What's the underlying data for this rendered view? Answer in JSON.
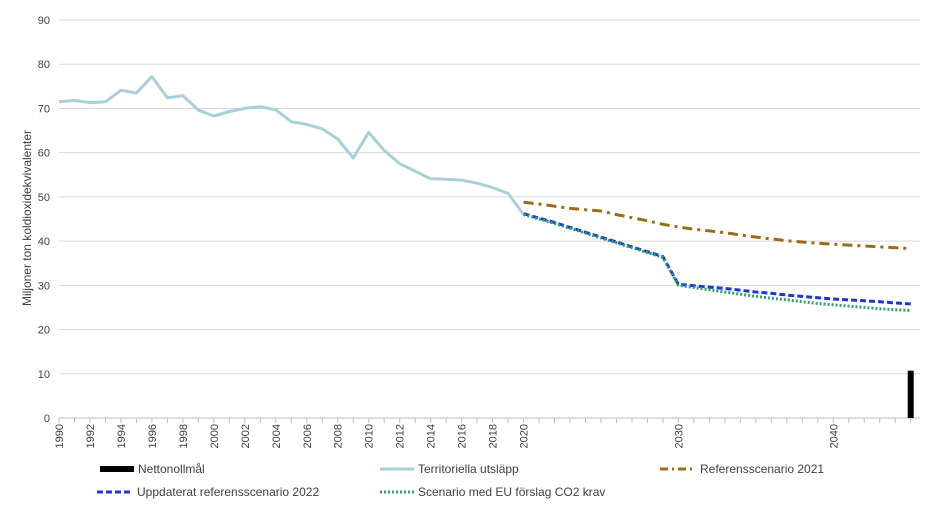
{
  "chart_data": {
    "type": "line",
    "title": "",
    "xlabel": "",
    "ylabel": "Miljoner ton koldioxidekvivalenter",
    "ylim": [
      0,
      90
    ],
    "yticks": [
      0,
      10,
      20,
      30,
      40,
      50,
      60,
      70,
      80,
      90
    ],
    "xticks": [
      "1990",
      "1992",
      "1994",
      "1996",
      "1998",
      "2000",
      "2002",
      "2004",
      "2006",
      "2008",
      "2010",
      "2012",
      "2014",
      "2016",
      "2018",
      "2020",
      "2030",
      "2040"
    ],
    "series": [
      {
        "name": "Territoriella utsläpp",
        "color": "#a9cfd9",
        "style": "solid",
        "x": [
          1990,
          1991,
          1992,
          1993,
          1994,
          1995,
          1996,
          1997,
          1998,
          1999,
          2000,
          2001,
          2002,
          2003,
          2004,
          2005,
          2006,
          2007,
          2008,
          2009,
          2010,
          2011,
          2012,
          2013,
          2014,
          2015,
          2016,
          2017,
          2018,
          2019,
          2020
        ],
        "values": [
          71.5,
          71.8,
          71.3,
          71.5,
          74.1,
          73.5,
          77.2,
          72.4,
          72.9,
          69.6,
          68.3,
          69.3,
          70.0,
          70.4,
          69.7,
          67.0,
          66.4,
          65.4,
          63.1,
          58.8,
          64.6,
          60.5,
          57.5,
          55.8,
          54.1,
          54.0,
          53.8,
          53.1,
          52.1,
          50.8,
          46.0
        ]
      },
      {
        "name": "Referensscenario 2021",
        "color": "#9c6b15",
        "style": "dashdot",
        "x": [
          2020,
          2021,
          2022,
          2023,
          2024,
          2025,
          2026,
          2027,
          2028,
          2029,
          2030,
          2031,
          2032,
          2033,
          2034,
          2035,
          2036,
          2037,
          2038,
          2039,
          2040,
          2041,
          2042,
          2043,
          2044,
          2045
        ],
        "values": [
          48.8,
          48.4,
          47.9,
          47.4,
          47.1,
          46.8,
          46.0,
          45.3,
          44.6,
          43.8,
          43.2,
          42.7,
          42.3,
          41.9,
          41.4,
          40.9,
          40.5,
          40.1,
          39.8,
          39.5,
          39.3,
          39.1,
          38.9,
          38.7,
          38.5,
          38.3
        ]
      },
      {
        "name": "Uppdaterat referensscenario 2022",
        "color": "#1f35d8",
        "style": "dashed",
        "x": [
          2020,
          2021,
          2022,
          2023,
          2024,
          2025,
          2026,
          2027,
          2028,
          2029,
          2030,
          2031,
          2032,
          2033,
          2034,
          2035,
          2036,
          2037,
          2038,
          2039,
          2040,
          2041,
          2042,
          2043,
          2044,
          2045
        ],
        "values": [
          46.2,
          45.2,
          44.2,
          43.1,
          42.0,
          40.9,
          39.8,
          38.7,
          37.6,
          36.5,
          30.2,
          29.9,
          29.6,
          29.3,
          28.9,
          28.5,
          28.2,
          27.8,
          27.5,
          27.2,
          26.9,
          26.7,
          26.5,
          26.3,
          26.0,
          25.8
        ]
      },
      {
        "name": "Scenario med EU förslag CO2 krav",
        "color": "#2ea36a",
        "style": "dotted",
        "x": [
          2020,
          2021,
          2022,
          2023,
          2024,
          2025,
          2026,
          2027,
          2028,
          2029,
          2030,
          2031,
          2032,
          2033,
          2034,
          2035,
          2036,
          2037,
          2038,
          2039,
          2040,
          2041,
          2042,
          2043,
          2044,
          2045
        ],
        "values": [
          46.0,
          45.0,
          44.0,
          42.9,
          41.8,
          40.7,
          39.6,
          38.5,
          37.4,
          36.3,
          30.0,
          29.5,
          29.0,
          28.5,
          28.0,
          27.5,
          27.1,
          26.7,
          26.3,
          25.9,
          25.6,
          25.3,
          25.0,
          24.7,
          24.5,
          24.3
        ]
      },
      {
        "name": "Nettonollmål",
        "color": "#000000",
        "style": "bar",
        "x": [
          2045
        ],
        "values": [
          10.7
        ]
      }
    ],
    "legend": {
      "row1": [
        "Nettonollmål",
        "Territoriella utsläpp",
        "Referensscenario 2021"
      ],
      "row2": [
        "Uppdaterat referensscenario 2022",
        "Scenario med EU förslag CO2 krav"
      ]
    }
  }
}
